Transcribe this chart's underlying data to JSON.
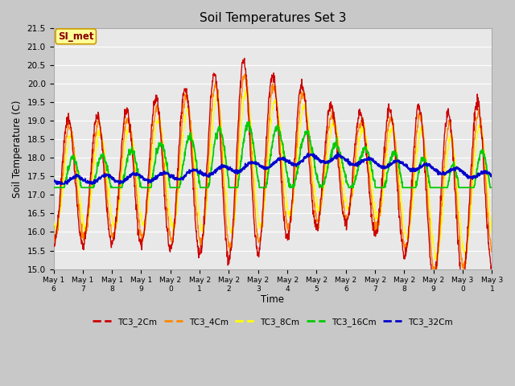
{
  "title": "Soil Temperatures Set 3",
  "xlabel": "Time",
  "ylabel": "Soil Temperature (C)",
  "ylim": [
    15.0,
    21.5
  ],
  "yticks": [
    15.0,
    15.5,
    16.0,
    16.5,
    17.0,
    17.5,
    18.0,
    18.5,
    19.0,
    19.5,
    20.0,
    20.5,
    21.0,
    21.5
  ],
  "xtick_labels": [
    "May 16",
    "May 17",
    "May 18",
    "May 19",
    "May 20",
    "May 21",
    "May 22",
    "May 23",
    "May 24",
    "May 25",
    "May 26",
    "May 27",
    "May 28",
    "May 29",
    "May 30",
    "May 31"
  ],
  "series_colors": {
    "TC3_2Cm": "#cc0000",
    "TC3_4Cm": "#ff8800",
    "TC3_8Cm": "#ffff00",
    "TC3_16Cm": "#00cc00",
    "TC3_32Cm": "#0000cc"
  },
  "fig_facecolor": "#c8c8c8",
  "ax_facecolor": "#e8e8e8",
  "grid_color": "#ffffff",
  "annotation_text": "SI_met",
  "annotation_fg": "#880000",
  "annotation_bg": "#ffff99",
  "annotation_border": "#cc9900"
}
